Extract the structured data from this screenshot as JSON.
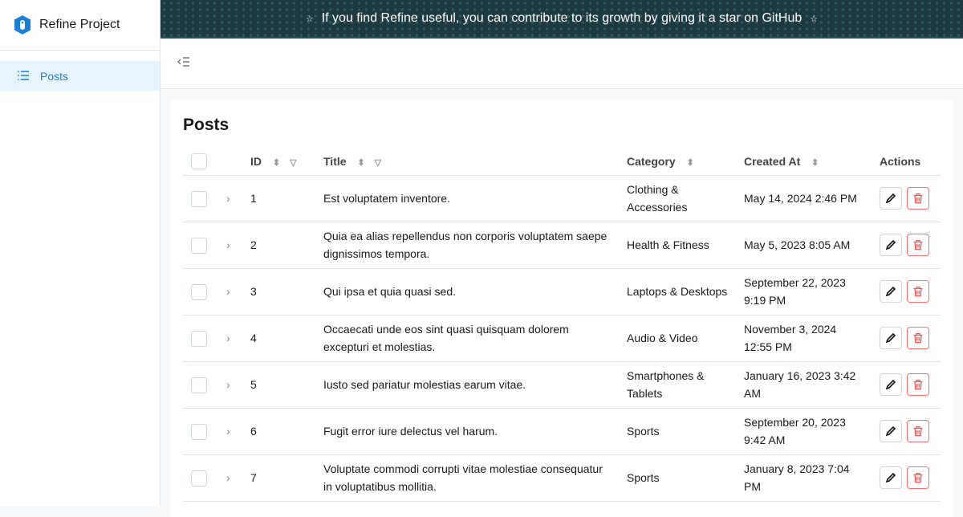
{
  "app": {
    "title": "Refine Project",
    "brand_color": "#1c7ed6"
  },
  "banner": {
    "text": "If you find Refine useful, you can contribute to its growth by giving it a star on GitHub"
  },
  "sidebar": {
    "items": [
      {
        "label": "Posts",
        "icon": "list-icon",
        "active": true
      }
    ]
  },
  "page": {
    "title": "Posts"
  },
  "table": {
    "headers": {
      "id": "ID",
      "title": "Title",
      "category": "Category",
      "created_at": "Created At",
      "actions": "Actions"
    },
    "rows": [
      {
        "id": "1",
        "title": "Est voluptatem inventore.",
        "category": "Clothing & Accessories",
        "created_at": "May 14, 2024 2:46 PM"
      },
      {
        "id": "2",
        "title": "Quia ea alias repellendus non corporis voluptatem saepe dignissimos tempora.",
        "category": "Health & Fitness",
        "created_at": "May 5, 2023 8:05 AM"
      },
      {
        "id": "3",
        "title": "Qui ipsa et quia quasi sed.",
        "category": "Laptops & Desktops",
        "created_at": "September 22, 2023 9:19 PM"
      },
      {
        "id": "4",
        "title": "Occaecati unde eos sint quasi quisquam dolorem excepturi et molestias.",
        "category": "Audio & Video",
        "created_at": "November 3, 2024 12:55 PM"
      },
      {
        "id": "5",
        "title": "Iusto sed pariatur molestias earum vitae.",
        "category": "Smartphones & Tablets",
        "created_at": "January 16, 2023 3:42 AM"
      },
      {
        "id": "6",
        "title": "Fugit error iure delectus vel harum.",
        "category": "Sports",
        "created_at": "September 20, 2023 9:42 AM"
      },
      {
        "id": "7",
        "title": "Voluptate commodi corrupti vitae molestiae consequatur in voluptatibus mollitia.",
        "category": "Sports",
        "created_at": "January 8, 2023 7:04 PM"
      }
    ]
  }
}
